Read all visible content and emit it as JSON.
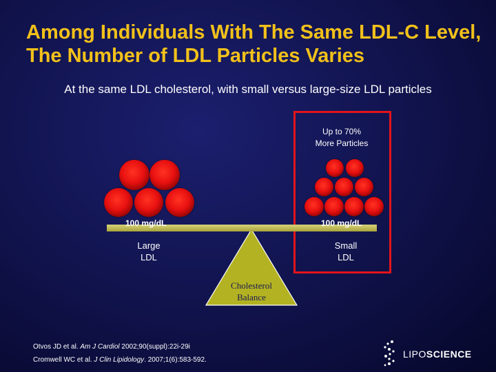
{
  "slide": {
    "title": "Among Individuals With The Same LDL-C Level, The Number of LDL Particles Varies",
    "subtitle": "At the same LDL cholesterol, with small versus large-size LDL particles",
    "callout_line1": "Up to 70%",
    "callout_line2": "More Particles",
    "left_pan_label": "100 mg/dL",
    "right_pan_label": "100 mg/dL",
    "left_ldl_line1": "Large",
    "left_ldl_line2": "LDL",
    "right_ldl_line1": "Small",
    "right_ldl_line2": "LDL",
    "fulcrum_line1": "Cholesterol",
    "fulcrum_line2": "Balance",
    "references": {
      "ref1_authors": "Otvos JD et al. ",
      "ref1_journal": "Am J Cardiol",
      "ref1_rest": " 2002;90(suppl):22i-29i",
      "ref2_authors": "Cromwell WC et al. ",
      "ref2_journal": "J Clin Lipidology",
      "ref2_rest": ". 2007;1(6):583-592."
    },
    "logo": {
      "text_light": "LIPO",
      "text_bold": "SCIENCE"
    },
    "colors": {
      "title": "#f2c11a",
      "particle": "#e81010",
      "highlight_box": "#e3141b",
      "beam": "#c8c35a",
      "fulcrum": "#b3b222"
    }
  }
}
